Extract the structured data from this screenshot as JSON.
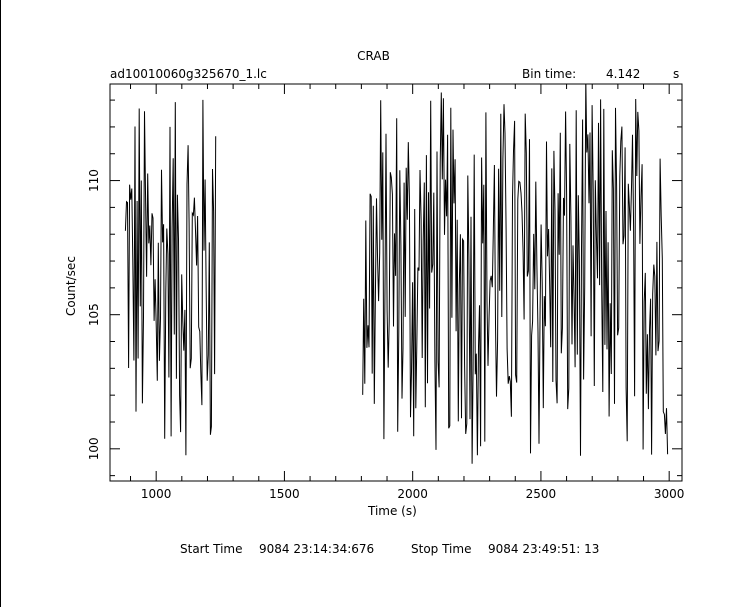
{
  "chart_data": {
    "type": "line",
    "title": "CRAB",
    "filename": "ad10010060g325670_1.lc",
    "bin_time_label": "Bin time:",
    "bin_time_value": "4.142",
    "bin_time_unit": "s",
    "xlabel": "Time (s)",
    "ylabel": "Count/sec",
    "xlim": [
      820,
      3050
    ],
    "ylim": [
      98.8,
      113.6
    ],
    "xticks_major": [
      1000,
      1500,
      2000,
      2500,
      3000
    ],
    "xtick_labels": [
      "1000",
      "1500",
      "2000",
      "2500",
      "3000"
    ],
    "yticks_major": [
      100,
      105,
      110
    ],
    "ytick_labels": [
      "100",
      "105",
      "110"
    ],
    "segments": [
      {
        "start": 880,
        "end": 1235
      },
      {
        "start": 1805,
        "end": 2995
      }
    ],
    "bin_width": 4.142,
    "mean_rate": 106.5,
    "rate_spread": 6.5,
    "grid": false,
    "start_time_label": "Start Time",
    "start_time_value": "9084 23:14:34:676",
    "stop_time_label": "Stop Time",
    "stop_time_value": "9084 23:49:51: 13"
  }
}
